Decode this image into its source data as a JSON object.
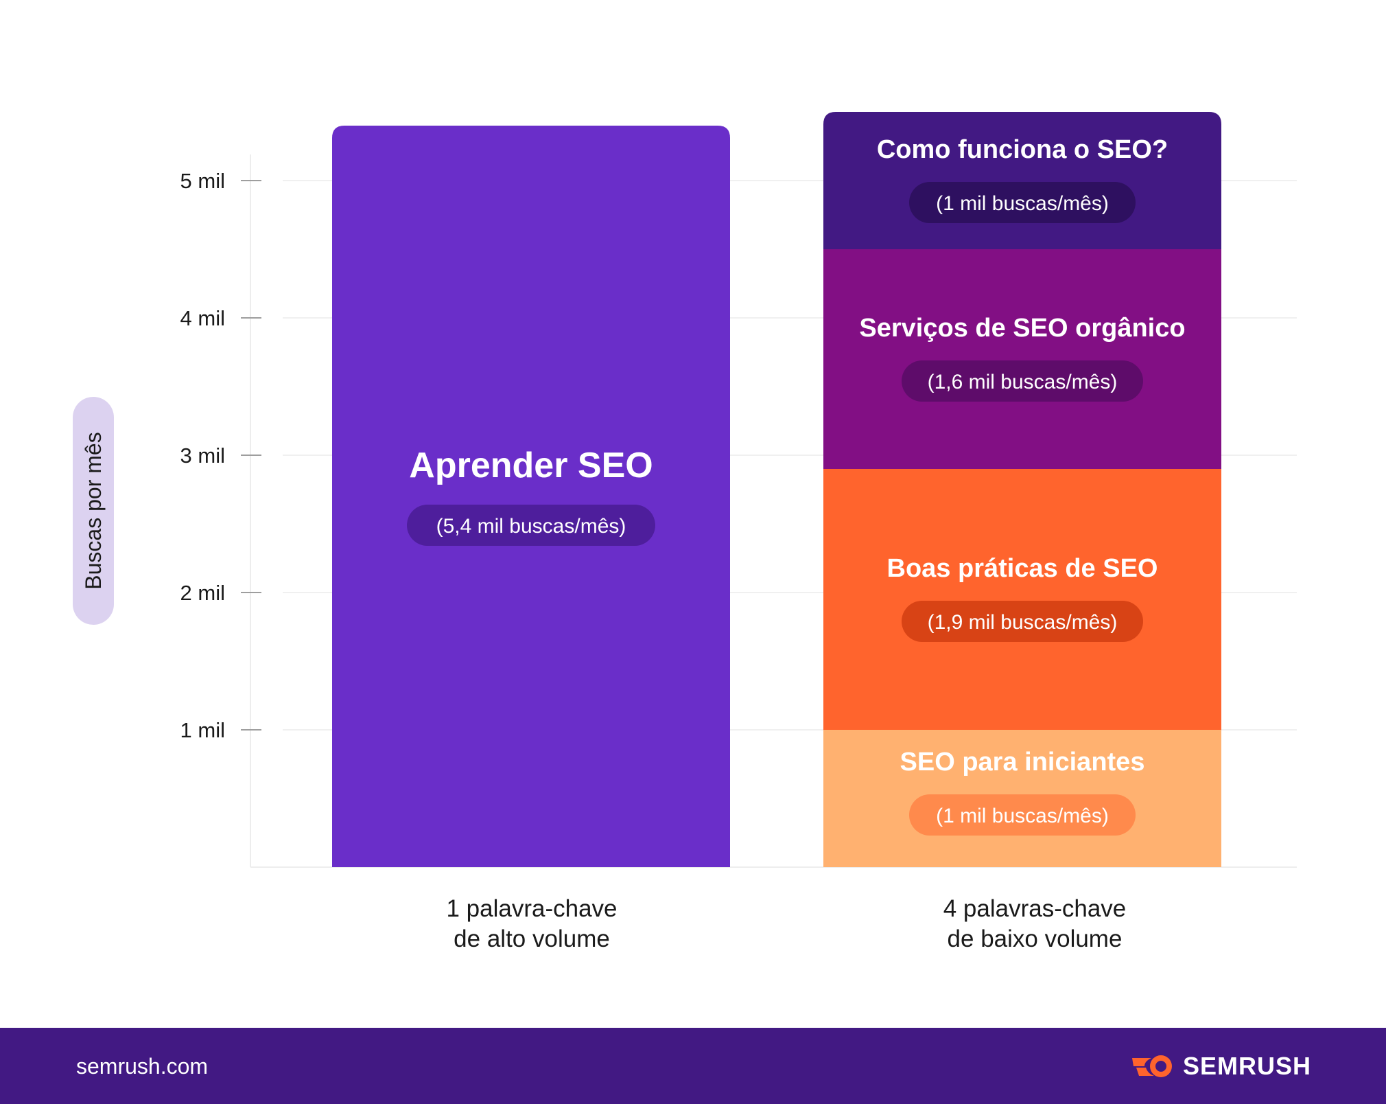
{
  "chart_data": {
    "type": "bar",
    "stacked": true,
    "ylabel": "Buscas por mês",
    "ylim": [
      0,
      5.4
    ],
    "y_ticks": [
      {
        "value": 1,
        "label": "1 mil"
      },
      {
        "value": 2,
        "label": "2 mil"
      },
      {
        "value": 3,
        "label": "3 mil"
      },
      {
        "value": 4,
        "label": "4 mil"
      },
      {
        "value": 5,
        "label": "5 mil"
      }
    ],
    "grid": true,
    "categories": [
      [
        "1 palavra-chave",
        "de alto volume"
      ],
      [
        "4 palavras-chave",
        "de baixo volume"
      ]
    ],
    "bars": [
      {
        "segments": [
          {
            "name": "Aprender SEO",
            "value": 5.4,
            "label": "(5,4 mil buscas/mês)",
            "color": "#6A2EC9",
            "pill_color": "#4E1E9C"
          }
        ]
      },
      {
        "segments": [
          {
            "name": "SEO para iniciantes",
            "value": 1,
            "label": "(1 mil buscas/mês)",
            "color": "#FFB170",
            "pill_color": "#FF8A4C"
          },
          {
            "name": "Boas práticas de SEO",
            "value": 1.9,
            "label": "(1,9 mil buscas/mês)",
            "color": "#FF642D",
            "pill_color": "#D84315"
          },
          {
            "name": "Serviços de SEO orgânico",
            "value": 1.6,
            "label": "(1,6 mil buscas/mês)",
            "color": "#820F84",
            "pill_color": "#5E0C6A"
          },
          {
            "name": "Como funciona o SEO?",
            "value": 1,
            "label": "(1 mil buscas/mês)",
            "color": "#421983",
            "pill_color": "#2E1060"
          }
        ]
      }
    ]
  },
  "footer": {
    "site": "semrush.com",
    "brand": "SEMRUSH",
    "brand_icon": "semrush-flame-icon"
  }
}
